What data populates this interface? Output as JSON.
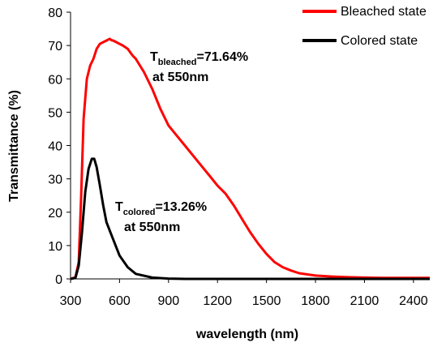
{
  "chart_data": {
    "type": "line",
    "xlabel": "wavelength (nm)",
    "ylabel": "Transmittance (%)",
    "xlim": [
      300,
      2500
    ],
    "ylim": [
      0,
      80
    ],
    "xticks": [
      300,
      600,
      900,
      1200,
      1500,
      1800,
      2100,
      2400
    ],
    "yticks": [
      0,
      10,
      20,
      30,
      40,
      50,
      60,
      70,
      80
    ],
    "grid": false,
    "legend_position": "top-right",
    "series": [
      {
        "name": "Bleached state",
        "color": "#ff0000",
        "x": [
          300,
          330,
          350,
          365,
          380,
          400,
          420,
          440,
          460,
          480,
          500,
          520,
          540,
          550,
          560,
          580,
          600,
          620,
          650,
          680,
          700,
          750,
          800,
          850,
          900,
          950,
          1000,
          1050,
          1100,
          1150,
          1200,
          1250,
          1300,
          1350,
          1400,
          1450,
          1500,
          1550,
          1600,
          1650,
          1700,
          1800,
          1900,
          2000,
          2100,
          2200,
          2300,
          2400,
          2500
        ],
        "y": [
          0,
          0.5,
          5,
          25,
          48,
          60,
          64,
          66,
          69,
          70.5,
          71,
          71.5,
          72,
          71.6,
          71.5,
          71,
          70.5,
          70,
          69,
          67,
          66,
          62,
          57,
          51,
          46,
          43,
          40,
          37,
          34,
          31,
          28,
          25.5,
          22,
          18,
          14,
          10.5,
          7.5,
          5,
          3.5,
          2.5,
          1.7,
          1.0,
          0.7,
          0.5,
          0.4,
          0.3,
          0.3,
          0.3,
          0.3
        ]
      },
      {
        "name": "Colored state",
        "color": "#000000",
        "x": [
          300,
          330,
          350,
          370,
          390,
          410,
          430,
          445,
          460,
          480,
          500,
          520,
          550,
          600,
          650,
          700,
          800,
          900,
          1000,
          1200,
          1500,
          1800,
          2100,
          2400,
          2500
        ],
        "y": [
          0,
          0.3,
          4,
          14,
          26,
          33,
          36,
          36,
          33.5,
          28,
          22,
          17,
          13.26,
          7,
          3.5,
          1.5,
          0.4,
          0.1,
          0,
          0,
          0,
          0,
          0,
          0,
          0
        ]
      }
    ],
    "annotations": [
      {
        "main": "T",
        "sub": "bleached",
        "value": "=71.64%",
        "line2": "at 550nm"
      },
      {
        "main": "T",
        "sub": "colored",
        "value": "=13.26%",
        "line2": "at 550nm"
      }
    ]
  }
}
